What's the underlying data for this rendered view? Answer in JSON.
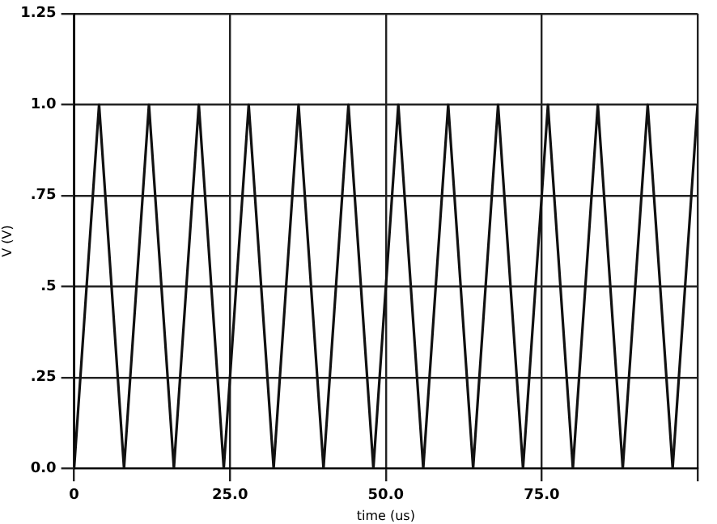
{
  "chart_data": {
    "type": "line",
    "xlabel": "time (us)",
    "ylabel": "V (V)",
    "x": [
      0,
      4,
      8,
      12,
      16,
      20,
      24,
      28,
      32,
      36,
      40,
      44,
      48,
      52,
      56,
      60,
      64,
      68,
      72,
      76,
      80,
      84,
      88,
      92,
      96,
      100
    ],
    "series": [
      {
        "color": "#111111",
        "values": [
          0,
          1,
          0,
          1,
          0,
          1,
          0,
          1,
          0,
          1,
          0,
          1,
          0,
          1,
          0,
          1,
          0,
          1,
          0,
          1,
          0,
          1,
          0,
          1,
          0,
          1
        ]
      }
    ],
    "xlim": [
      0,
      100
    ],
    "xticks": [
      {
        "value": 0,
        "label": "0"
      },
      {
        "value": 25,
        "label": "25.0"
      },
      {
        "value": 50,
        "label": "50.0"
      },
      {
        "value": 75,
        "label": "75.0"
      },
      {
        "value": 100,
        "label": null
      }
    ],
    "ylim": [
      0,
      1.25
    ],
    "yticks": [
      {
        "value": 0,
        "label": "0.0"
      },
      {
        "value": 0.25,
        "label": ".25"
      },
      {
        "value": 0.5,
        "label": ".5"
      },
      {
        "value": 0.75,
        "label": ".75"
      },
      {
        "value": 1,
        "label": "1.0"
      },
      {
        "value": 1.25,
        "label": "1.25"
      }
    ],
    "grid": true,
    "legend": false,
    "marker": "none",
    "line_style": "solid"
  }
}
